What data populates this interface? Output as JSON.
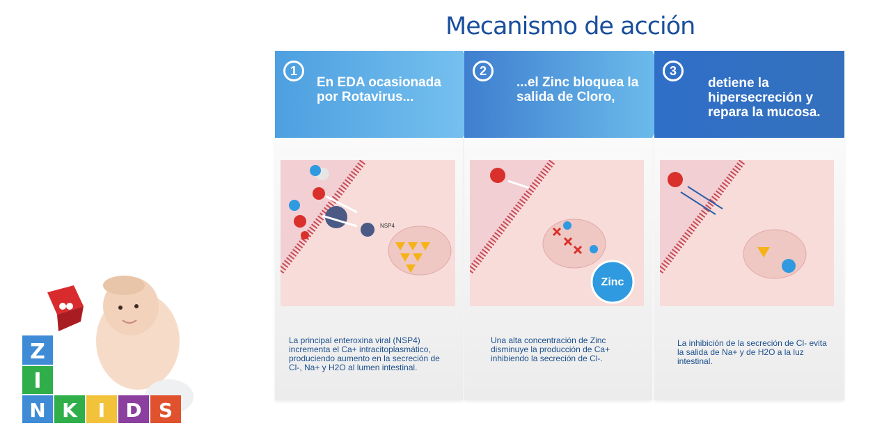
{
  "title": "Mecanismo de acción",
  "steps": [
    {
      "number": "1",
      "banner": "En EDA ocasionada por Rotavirus...",
      "caption": "La principal enteroxina viral (NSP4) incrementa el Ca+ intracitoplasmático, produciendo aumento en la secreción de Cl-, Na+ y H2O al lumen intestinal.",
      "label": "NSP4"
    },
    {
      "number": "2",
      "banner": "...el Zinc bloquea la salida de Cloro,",
      "caption": "Una alta concentración de Zinc disminuye la producción de Ca+ inhibiendo la secreción de Cl-.",
      "label": "Zinc"
    },
    {
      "number": "3",
      "banner": "detiene la hipersecreción y repara la mucosa.",
      "caption": "La inhibición de la secreción de Cl- evita la salida de Na+ y de H2O a la luz intestinal."
    }
  ],
  "ions": {
    "cl": "Cl",
    "ca": "Ca+",
    "zinc": "zinc"
  },
  "logo": {
    "letters_top": [
      "Z",
      "I"
    ],
    "letters_bottom": [
      "N",
      "K",
      "I",
      "D",
      "S"
    ]
  },
  "colors": {
    "title": "#1a4f9c",
    "caption": "#1c4f8d",
    "tissue": "#f2cfd3",
    "cell": "#f7dcda",
    "ion_red": "#d9302b",
    "ion_blue": "#2f9ae0",
    "ca_yellow": "#f5b318"
  }
}
